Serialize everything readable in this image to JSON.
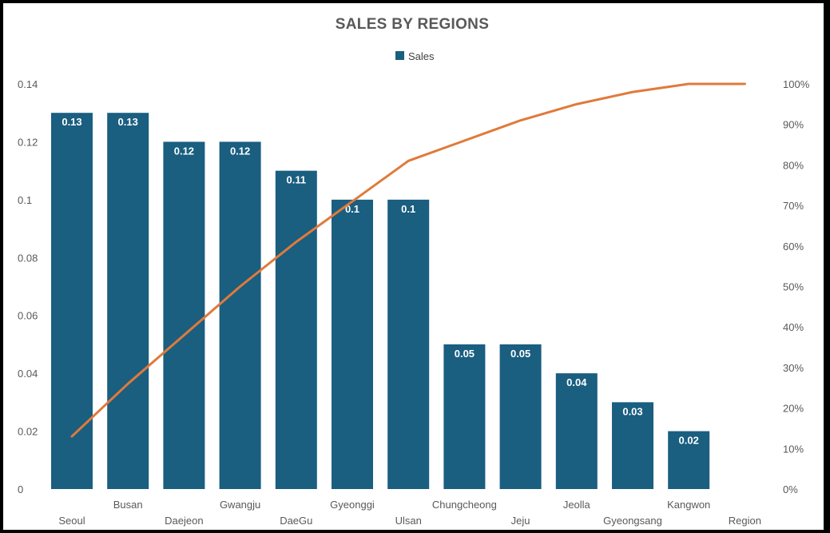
{
  "chart_data": {
    "type": "bar",
    "title": "SALES BY REGIONS",
    "categories": [
      "Seoul",
      "Busan",
      "Daejeon",
      "Gwangju",
      "DaeGu",
      "Gyeonggi",
      "Ulsan",
      "Chungcheong",
      "Jeju",
      "Jeolla",
      "Gyeongsang",
      "Kangwon",
      "Region"
    ],
    "series": [
      {
        "name": "Sales",
        "type": "bar",
        "color": "#1a5e80",
        "values": [
          0.13,
          0.13,
          0.12,
          0.12,
          0.11,
          0.1,
          0.1,
          0.05,
          0.05,
          0.04,
          0.03,
          0.02,
          null
        ],
        "data_labels": [
          "0.13",
          "0.13",
          "0.12",
          "0.12",
          "0.11",
          "0.1",
          "0.1",
          "0.05",
          "0.05",
          "0.04",
          "0.03",
          "0.02",
          ""
        ]
      },
      {
        "type": "line",
        "axis": "secondary",
        "color": "#e07a3a",
        "values": [
          0.13,
          0.26,
          0.38,
          0.5,
          0.61,
          0.71,
          0.81,
          0.86,
          0.91,
          0.95,
          0.98,
          1.0,
          1.0
        ]
      }
    ],
    "ylim": [
      0,
      0.14
    ],
    "y_ticks": [
      "0",
      "0.02",
      "0.04",
      "0.06",
      "0.08",
      "0.1",
      "0.12",
      "0.14"
    ],
    "y2lim": [
      0,
      1
    ],
    "y2_ticks": [
      "0%",
      "10%",
      "20%",
      "30%",
      "40%",
      "50%",
      "60%",
      "70%",
      "80%",
      "90%",
      "100%"
    ],
    "legend": {
      "position": "top",
      "label": "Sales"
    },
    "grid": false
  }
}
